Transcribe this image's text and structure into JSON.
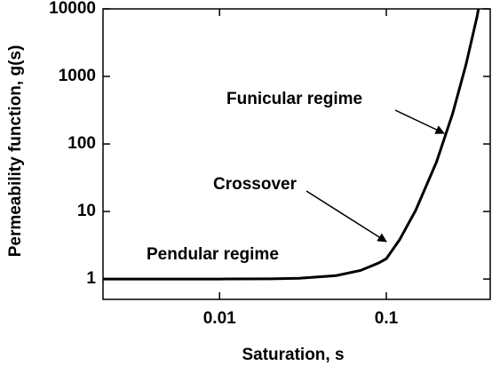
{
  "chart_data": {
    "type": "line",
    "x_label": "Saturation, s",
    "y_label": "Permeability function, g(s)",
    "x": [
      0.002,
      0.005,
      0.01,
      0.02,
      0.03,
      0.05,
      0.07,
      0.09,
      0.1,
      0.12,
      0.15,
      0.2,
      0.25,
      0.3,
      0.35,
      0.357
    ],
    "series": [
      {
        "name": "g(s)",
        "color": "#000000",
        "values": [
          1,
          1,
          1.001,
          1.008,
          1.027,
          1.125,
          1.34,
          1.73,
          2,
          3.8,
          10.4,
          54,
          282,
          1470,
          7660,
          10000
        ]
      }
    ],
    "xlim": [
      0.002,
      0.42
    ],
    "ylim": [
      0.5,
      10000
    ],
    "xticks": [
      0.01,
      0.1
    ],
    "yticks": [
      1,
      10,
      100,
      1000,
      10000
    ],
    "xscale": "log",
    "yscale": "log",
    "annotations": [
      {
        "text": "Funicular regime"
      },
      {
        "text": "Crossover"
      },
      {
        "text": "Pendular regime"
      }
    ]
  }
}
